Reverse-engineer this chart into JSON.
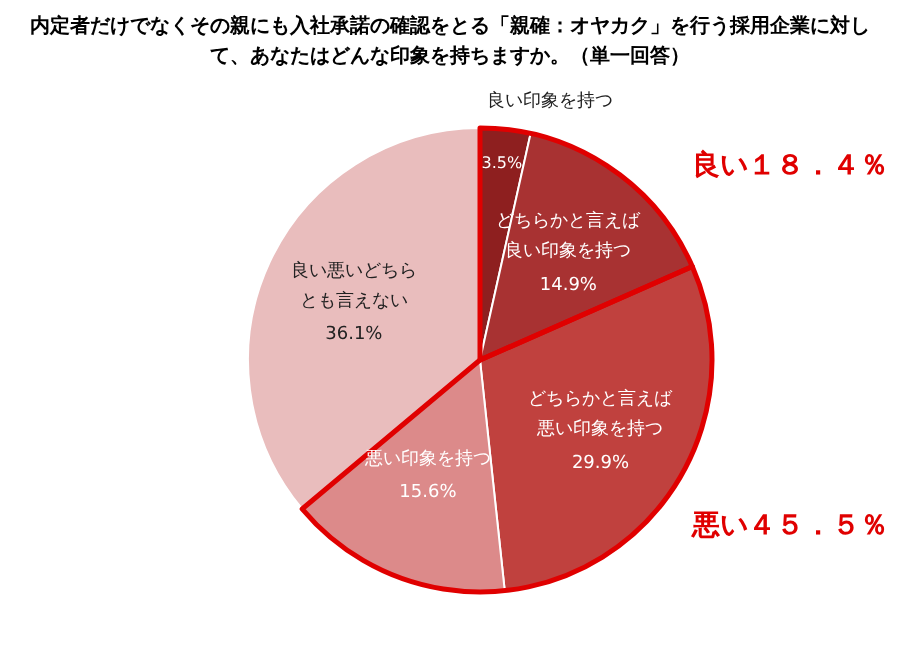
{
  "chart_data": {
    "type": "pie",
    "title": "内定者だけでなくその親にも入社承諾の確認をとる「親確：オヤカク」を行う採用企業に対して、あなたはどんな印象を持ちますか。（単一回答）",
    "categories": [
      "良い印象を持つ",
      "どちらかと言えば良い印象を持つ",
      "どちらかと言えば悪い印象を持つ",
      "悪い印象を持つ",
      "良い悪いどちらとも言えない"
    ],
    "values": [
      3.5,
      14.9,
      29.9,
      15.6,
      36.1
    ],
    "value_labels": [
      "3.5%",
      "14.9%",
      "29.9%",
      "15.6%",
      "36.1%"
    ],
    "colors": [
      "#8e1f1f",
      "#a83232",
      "#c0413e",
      "#dc8a8a",
      "#e9bdbd"
    ],
    "annotations": [
      "良い１８．４％",
      "悪い４５．５％"
    ]
  }
}
